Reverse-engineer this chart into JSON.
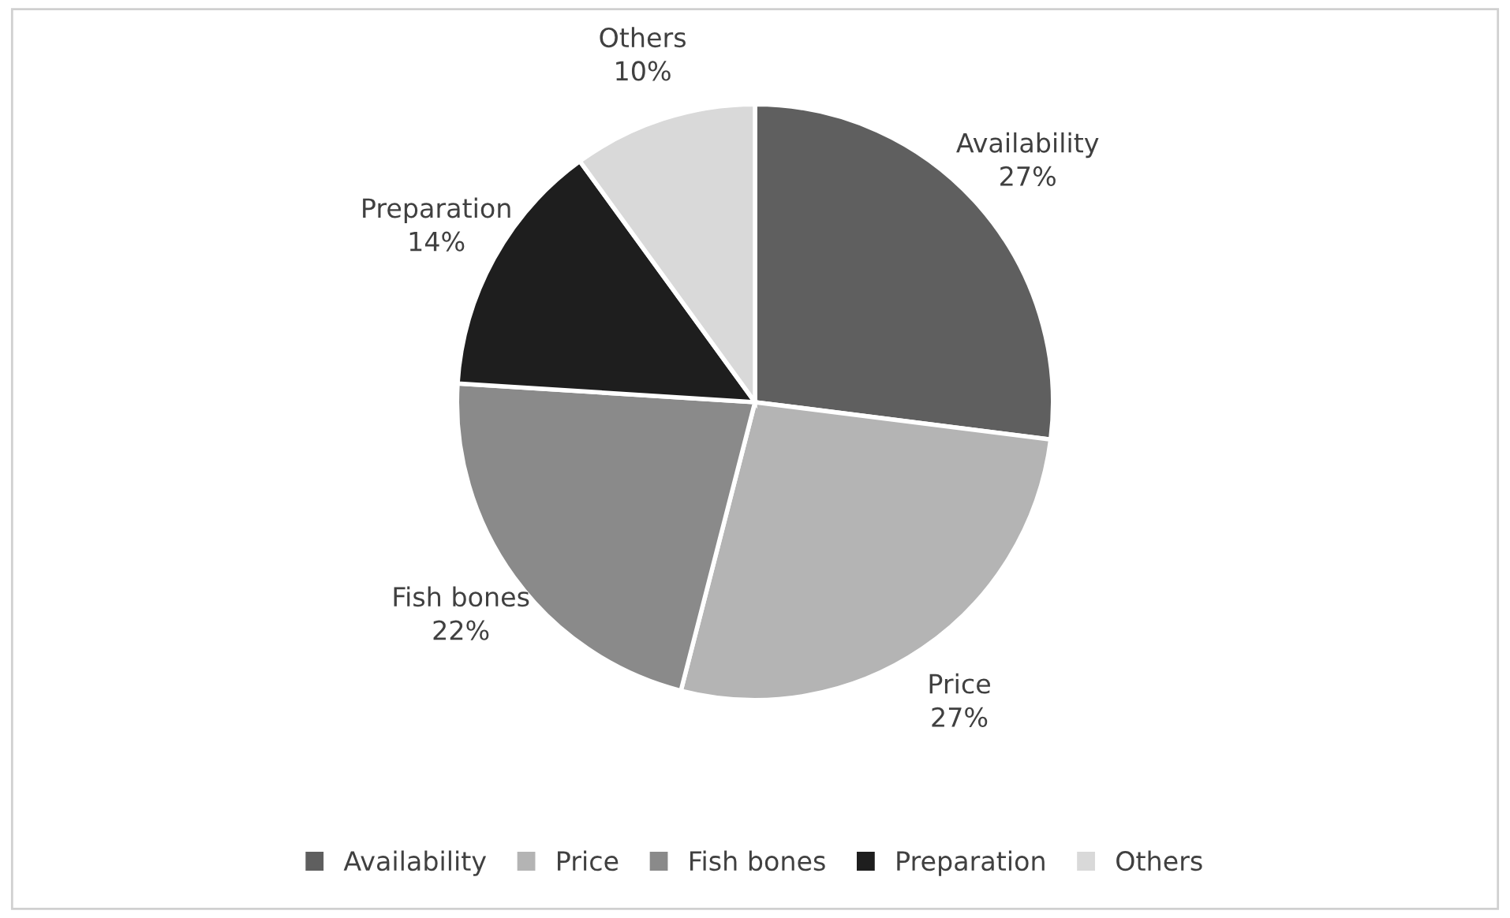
{
  "chart_data": {
    "type": "pie",
    "categories": [
      "Availability",
      "Price",
      "Fish bones",
      "Preparation",
      "Others"
    ],
    "values": [
      27,
      27,
      22,
      14,
      10
    ],
    "colors": [
      "#5f5f5f",
      "#b4b4b4",
      "#8a8a8a",
      "#1e1e1e",
      "#d9d9d9"
    ],
    "value_labels": [
      "27%",
      "27%",
      "22%",
      "14%",
      "10%"
    ],
    "legend": "bottom"
  }
}
